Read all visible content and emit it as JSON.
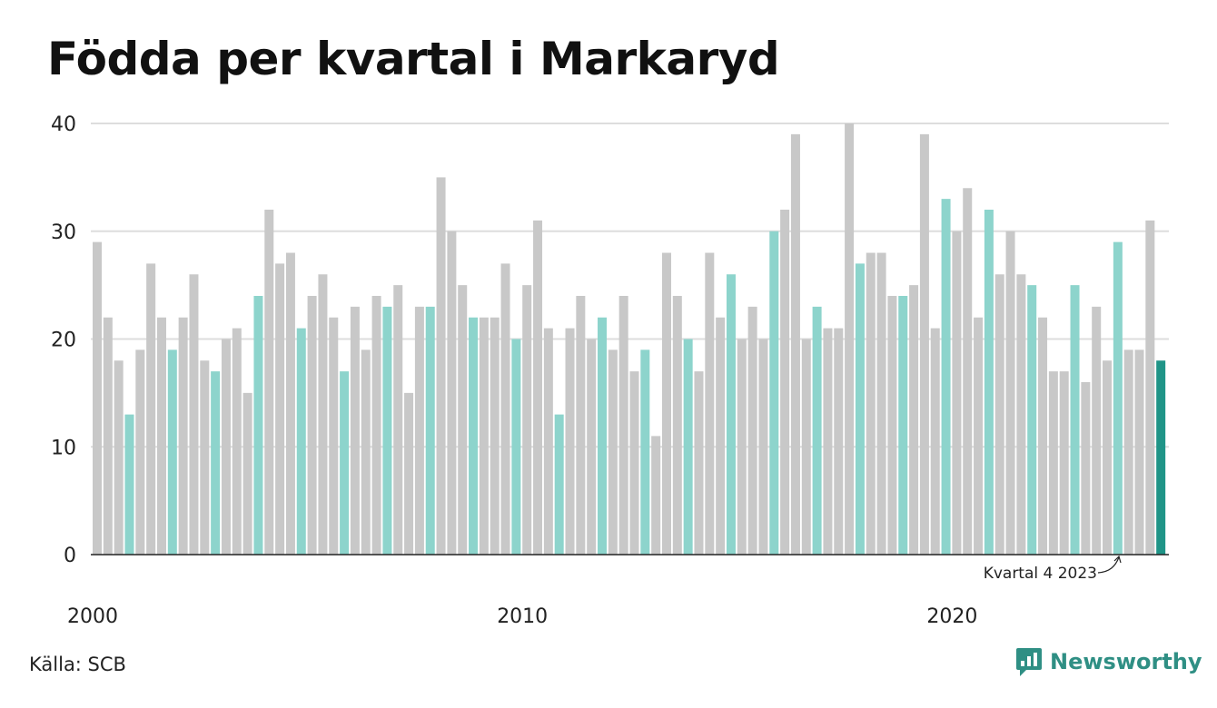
{
  "chart_data": {
    "type": "bar",
    "title": "Födda per kvartal i Markaryd",
    "xlabel": "",
    "ylabel": "",
    "ylim": [
      0,
      40
    ],
    "y_ticks": [
      0,
      10,
      20,
      30,
      40
    ],
    "x_ticks": [
      {
        "label": "2000",
        "year": 2000
      },
      {
        "label": "2010",
        "year": 2010
      },
      {
        "label": "2020",
        "year": 2020
      }
    ],
    "grid": true,
    "start_year": 2000,
    "values": [
      29,
      22,
      18,
      13,
      19,
      27,
      22,
      19,
      22,
      26,
      18,
      17,
      20,
      21,
      15,
      24,
      32,
      27,
      28,
      21,
      24,
      26,
      22,
      17,
      23,
      19,
      24,
      23,
      25,
      15,
      23,
      23,
      35,
      30,
      25,
      22,
      22,
      22,
      27,
      20,
      25,
      31,
      21,
      13,
      21,
      24,
      20,
      22,
      19,
      24,
      17,
      19,
      11,
      28,
      24,
      20,
      17,
      28,
      22,
      26,
      20,
      23,
      20,
      30,
      32,
      39,
      20,
      23,
      21,
      21,
      40,
      27,
      28,
      28,
      24,
      24,
      25,
      39,
      21,
      33,
      30,
      34,
      22,
      32,
      26,
      30,
      26,
      25,
      22,
      17,
      17,
      25,
      16,
      23,
      18,
      29,
      19,
      19,
      31,
      18
    ],
    "colors": {
      "default": "#c8c8c8",
      "q4": "#8dd4cc",
      "latest": "#1f9487"
    },
    "annotation": "Kvartal 4 2023"
  },
  "source": "Källa: SCB",
  "brand": {
    "name": "Newsworthy",
    "logo_icon": "newsworthy-logo-icon",
    "color": "#2f8f84"
  }
}
